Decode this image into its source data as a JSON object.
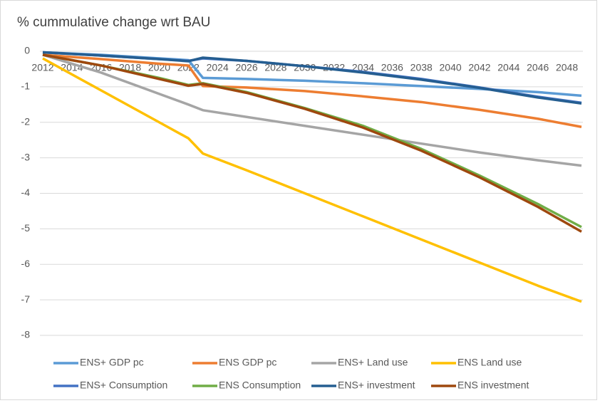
{
  "chart_data": {
    "type": "line",
    "title": "% cummulative change wrt BAU",
    "x": [
      2012,
      2016,
      2020,
      2022,
      2023,
      2026,
      2030,
      2034,
      2038,
      2042,
      2046,
      2049
    ],
    "xlim": [
      2012,
      2049
    ],
    "xticks": [
      2012,
      2014,
      2016,
      2018,
      2020,
      2022,
      2024,
      2026,
      2028,
      2030,
      2032,
      2034,
      2036,
      2038,
      2040,
      2042,
      2044,
      2046,
      2048
    ],
    "ylim": [
      -8,
      0
    ],
    "yticks": [
      0,
      -1,
      -2,
      -3,
      -4,
      -5,
      -6,
      -7,
      -8
    ],
    "grid": true,
    "legend": "bottom",
    "series": [
      {
        "name": "ENS+ GDP pc",
        "color": "#5b9bd5",
        "values": [
          -0.03,
          -0.1,
          -0.2,
          -0.25,
          -0.75,
          -0.78,
          -0.83,
          -0.9,
          -0.98,
          -1.06,
          -1.15,
          -1.25
        ]
      },
      {
        "name": "ENS GDP pc",
        "color": "#ed7d31",
        "values": [
          -0.1,
          -0.22,
          -0.35,
          -0.4,
          -0.98,
          -1.02,
          -1.12,
          -1.27,
          -1.43,
          -1.65,
          -1.9,
          -2.13
        ]
      },
      {
        "name": "ENS+ Land use",
        "color": "#a5a5a5",
        "values": [
          -0.1,
          -0.6,
          -1.2,
          -1.5,
          -1.66,
          -1.85,
          -2.1,
          -2.35,
          -2.6,
          -2.85,
          -3.07,
          -3.22
        ]
      },
      {
        "name": "ENS Land use",
        "color": "#ffc000",
        "values": [
          -0.2,
          -1.1,
          -2.0,
          -2.45,
          -2.88,
          -3.35,
          -4.0,
          -4.65,
          -5.3,
          -5.95,
          -6.6,
          -7.05
        ]
      },
      {
        "name": "ENS+ Consumption",
        "color": "#4472c4",
        "values": [
          -0.03,
          -0.12,
          -0.22,
          -0.27,
          -0.2,
          -0.27,
          -0.42,
          -0.58,
          -0.78,
          -1.02,
          -1.28,
          -1.45
        ]
      },
      {
        "name": "ENS Consumption",
        "color": "#70ad47",
        "values": [
          -0.1,
          -0.4,
          -0.75,
          -0.95,
          -0.9,
          -1.15,
          -1.6,
          -2.1,
          -2.75,
          -3.5,
          -4.3,
          -4.95
        ]
      },
      {
        "name": "ENS+ investment",
        "color": "#255e91",
        "values": [
          -0.03,
          -0.12,
          -0.22,
          -0.28,
          -0.18,
          -0.27,
          -0.42,
          -0.6,
          -0.8,
          -1.03,
          -1.3,
          -1.47
        ]
      },
      {
        "name": "ENS investment",
        "color": "#9e480e",
        "values": [
          -0.1,
          -0.4,
          -0.78,
          -0.97,
          -0.92,
          -1.17,
          -1.62,
          -2.15,
          -2.8,
          -3.55,
          -4.38,
          -5.08
        ]
      }
    ]
  }
}
